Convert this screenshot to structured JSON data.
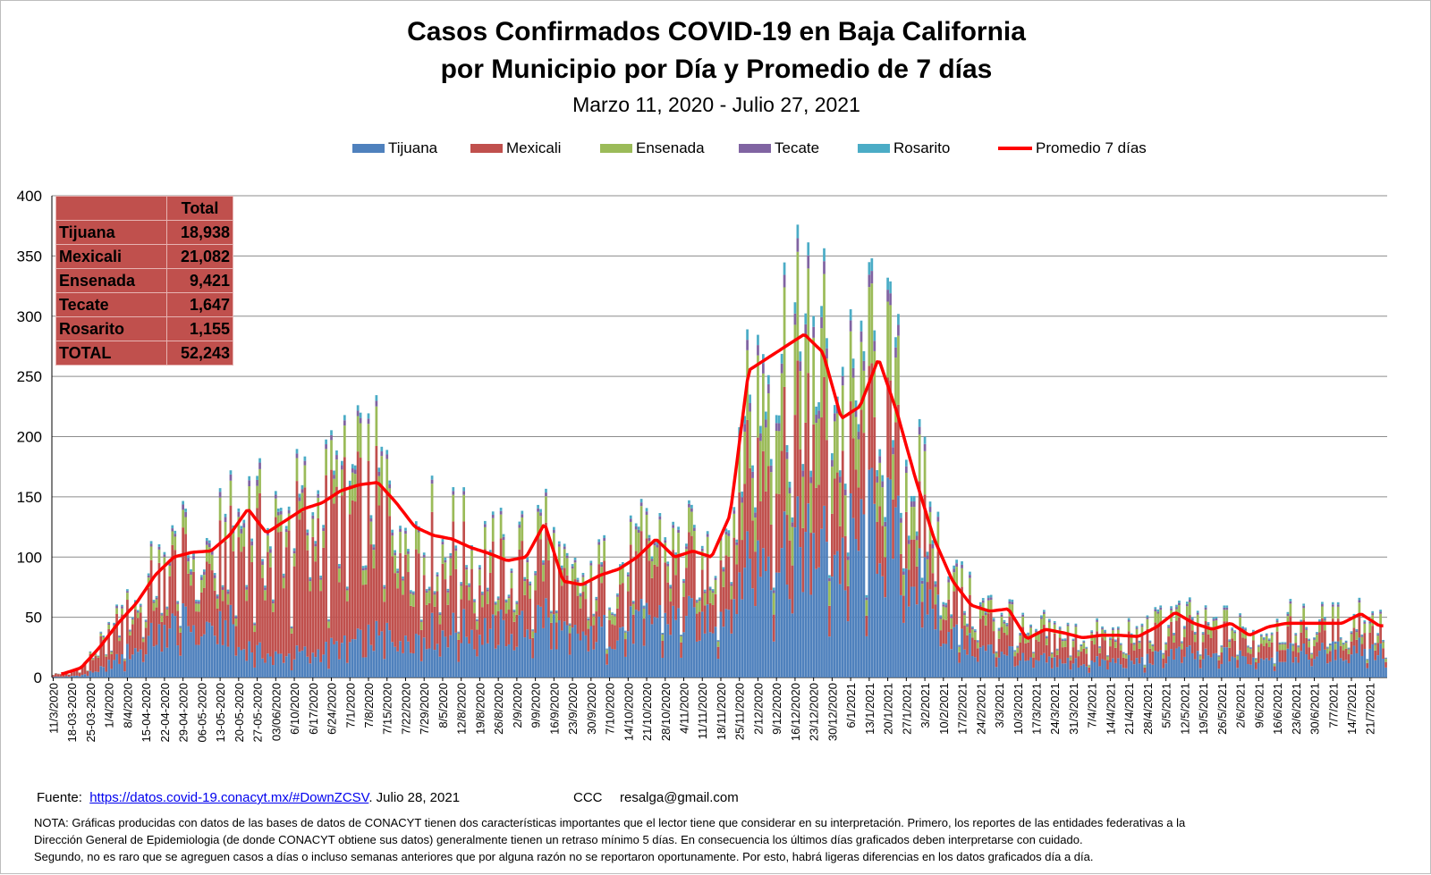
{
  "title_line1": "Casos Confirmados COVID-19 en Baja California",
  "title_line2": "por Municipio por Día y Promedio de 7 días",
  "subtitle": "Marzo 11, 2020  - Julio 27, 2021",
  "summary_table": {
    "header": "Total",
    "rows": [
      {
        "name": "Tijuana",
        "value": "18,938"
      },
      {
        "name": "Mexicali",
        "value": "21,082"
      },
      {
        "name": "Ensenada",
        "value": "9,421"
      },
      {
        "name": "Tecate",
        "value": "1,647"
      },
      {
        "name": "Rosarito",
        "value": "1,155"
      },
      {
        "name": "TOTAL",
        "value": "52,243"
      }
    ]
  },
  "source": {
    "label": "Fuente:",
    "url_text": "https://datos.covid-19.conacyt.mx/#DownZCSV",
    "date": ".  Julio  28, 2021",
    "ccc": "CCC",
    "email": "resalga@gmail.com"
  },
  "note_lines": [
    "NOTA: Gráficas producidas con datos de las bases de datos de CONACYT tienen dos características importantes que el lector tiene que considerar en su interpretación.  Primero, los reportes de las entidades federativas  a la",
    "Dirección General de Epidemiologia (de donde CONACYT obtiene sus datos) generalmente tienen un retraso mínimo 5 días. En consecuencia los últimos días graficados deben interpretarse  con cuidado.",
    "Segundo, no es raro que se agreguen casos a días o incluso semanas anteriores que por alguna razón no se reportaron oportunamente.  Por esto, habrá ligeras diferencias en los datos  graficados día a día."
  ],
  "chart_data": {
    "type": "bar",
    "stacked": true,
    "date_range": [
      "2020-03-11",
      "2021-07-27"
    ],
    "ylim": [
      0,
      400
    ],
    "yticks": [
      0,
      50,
      100,
      150,
      200,
      250,
      300,
      350,
      400
    ],
    "grid": true,
    "legend_position": "top",
    "x_tick_labels": [
      "11/3/2020",
      "18-03-2020",
      "25-03-2020",
      "1/4/2020",
      "8/4/2020",
      "15-04-2020",
      "22-04-2020",
      "29-04-2020",
      "06-05-2020",
      "13-05-2020",
      "20-05-2020",
      "27-05-2020",
      "03/06/2020",
      "6/10/2020",
      "6/17/2020",
      "6/24/2020",
      "7/1/2020",
      "7/8/2020",
      "7/15/2020",
      "7/22/2020",
      "7/29/2020",
      "8/5/2020",
      "12/8/2020",
      "19/8/2020",
      "26/8/2020",
      "2/9/2020",
      "9/9/2020",
      "16/9/2020",
      "23/9/2020",
      "30/9/2020",
      "7/10/2020",
      "14/10/2020",
      "21/10/2020",
      "28/10/2020",
      "4/11/2020",
      "11/11/2020",
      "18/11/2020",
      "25/11/2020",
      "2/12/2020",
      "9/12/2020",
      "16/12/2020",
      "23/12/2020",
      "30/12/2020",
      "6/1/2021",
      "13/1/2021",
      "20/1/2021",
      "27/1/2021",
      "3/2/2021",
      "10/2/2021",
      "17/2/2021",
      "24/2/2021",
      "3/3/2021",
      "10/3/2021",
      "17/3/2021",
      "24/3/2021",
      "31/3/2021",
      "7/4/2021",
      "14/4/2021",
      "21/4/2021",
      "28/4/2021",
      "5/5/2021",
      "12/5/2021",
      "19/5/2021",
      "26/5/2021",
      "2/6/2021",
      "9/6/2021",
      "16/6/2021",
      "23/6/2021",
      "30/6/2021",
      "7/7/2021",
      "14/7/2021",
      "21/7/2021"
    ],
    "series": [
      {
        "name": "Tijuana",
        "color": "#4f81bd"
      },
      {
        "name": "Mexicali",
        "color": "#c0504d"
      },
      {
        "name": "Ensenada",
        "color": "#9bbb59"
      },
      {
        "name": "Tecate",
        "color": "#8064a2"
      },
      {
        "name": "Rosarito",
        "color": "#4bacc6"
      }
    ],
    "line_series": {
      "name": "Promedio 7 días",
      "color": "#ff0000"
    },
    "weekly_avg_total": [
      3,
      8,
      25,
      45,
      62,
      85,
      100,
      104,
      105,
      118,
      140,
      120,
      130,
      140,
      145,
      155,
      160,
      162,
      145,
      125,
      118,
      115,
      108,
      103,
      97,
      100,
      128,
      80,
      77,
      85,
      90,
      100,
      115,
      100,
      105,
      100,
      135,
      255,
      265,
      275,
      285,
      270,
      215,
      225,
      265,
      220,
      165,
      115,
      80,
      60,
      55,
      57,
      32,
      40,
      37,
      33,
      35,
      35,
      34,
      42,
      54,
      45,
      40,
      45,
      35,
      42,
      45,
      45,
      45,
      45,
      53,
      43
    ],
    "weekly_share_pct": [
      [
        20,
        70,
        5,
        3,
        2
      ],
      [
        22,
        68,
        6,
        2,
        2
      ],
      [
        25,
        65,
        6,
        2,
        2
      ],
      [
        32,
        55,
        8,
        3,
        2
      ],
      [
        38,
        50,
        8,
        2,
        2
      ],
      [
        40,
        46,
        10,
        2,
        2
      ],
      [
        42,
        45,
        9,
        2,
        2
      ],
      [
        42,
        43,
        10,
        3,
        2
      ],
      [
        40,
        43,
        12,
        3,
        2
      ],
      [
        35,
        48,
        12,
        3,
        2
      ],
      [
        18,
        65,
        12,
        3,
        2
      ],
      [
        16,
        68,
        11,
        3,
        2
      ],
      [
        14,
        72,
        10,
        2,
        2
      ],
      [
        14,
        72,
        10,
        2,
        2
      ],
      [
        15,
        70,
        11,
        2,
        2
      ],
      [
        16,
        68,
        12,
        2,
        2
      ],
      [
        18,
        65,
        13,
        2,
        2
      ],
      [
        20,
        62,
        14,
        2,
        2
      ],
      [
        24,
        58,
        14,
        2,
        2
      ],
      [
        28,
        54,
        14,
        2,
        2
      ],
      [
        32,
        50,
        14,
        2,
        2
      ],
      [
        34,
        48,
        14,
        2,
        2
      ],
      [
        36,
        46,
        14,
        2,
        2
      ],
      [
        38,
        44,
        14,
        2,
        2
      ],
      [
        40,
        42,
        14,
        2,
        2
      ],
      [
        40,
        42,
        14,
        2,
        2
      ],
      [
        42,
        40,
        14,
        2,
        2
      ],
      [
        42,
        40,
        14,
        2,
        2
      ],
      [
        44,
        38,
        14,
        2,
        2
      ],
      [
        44,
        38,
        14,
        2,
        2
      ],
      [
        44,
        38,
        14,
        2,
        2
      ],
      [
        44,
        38,
        14,
        2,
        2
      ],
      [
        44,
        38,
        14,
        2,
        2
      ],
      [
        46,
        36,
        14,
        2,
        2
      ],
      [
        46,
        36,
        14,
        2,
        2
      ],
      [
        50,
        32,
        14,
        2,
        2
      ],
      [
        46,
        36,
        14,
        2,
        2
      ],
      [
        42,
        32,
        20,
        3,
        3
      ],
      [
        40,
        30,
        24,
        3,
        3
      ],
      [
        40,
        30,
        24,
        3,
        3
      ],
      [
        40,
        30,
        24,
        3,
        3
      ],
      [
        40,
        30,
        24,
        3,
        3
      ],
      [
        45,
        28,
        21,
        3,
        3
      ],
      [
        50,
        25,
        19,
        3,
        3
      ],
      [
        50,
        25,
        19,
        3,
        3
      ],
      [
        50,
        25,
        19,
        3,
        3
      ],
      [
        50,
        26,
        18,
        3,
        3
      ],
      [
        50,
        26,
        18,
        3,
        3
      ],
      [
        45,
        32,
        17,
        3,
        3
      ],
      [
        42,
        36,
        16,
        3,
        3
      ],
      [
        40,
        38,
        16,
        3,
        3
      ],
      [
        40,
        38,
        16,
        3,
        3
      ],
      [
        38,
        40,
        16,
        3,
        3
      ],
      [
        36,
        42,
        16,
        3,
        3
      ],
      [
        36,
        42,
        16,
        3,
        3
      ],
      [
        36,
        42,
        16,
        3,
        3
      ],
      [
        36,
        42,
        16,
        3,
        3
      ],
      [
        38,
        40,
        16,
        3,
        3
      ],
      [
        38,
        40,
        16,
        3,
        3
      ],
      [
        38,
        40,
        16,
        3,
        3
      ],
      [
        40,
        38,
        16,
        3,
        3
      ],
      [
        40,
        38,
        16,
        3,
        3
      ],
      [
        40,
        38,
        16,
        3,
        3
      ],
      [
        42,
        36,
        16,
        3,
        3
      ],
      [
        42,
        36,
        16,
        3,
        3
      ],
      [
        44,
        34,
        16,
        3,
        3
      ],
      [
        44,
        34,
        16,
        3,
        3
      ],
      [
        46,
        32,
        16,
        3,
        3
      ],
      [
        46,
        32,
        16,
        3,
        3
      ],
      [
        48,
        30,
        16,
        3,
        3
      ],
      [
        50,
        28,
        16,
        3,
        3
      ],
      [
        50,
        28,
        16,
        3,
        3
      ]
    ]
  }
}
